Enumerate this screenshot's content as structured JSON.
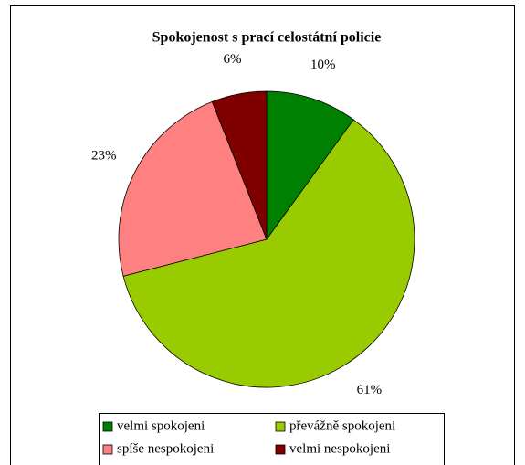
{
  "chart_data": {
    "type": "pie",
    "title": "Spokojenost s prací celostátní policie",
    "categories": [
      "velmi spokojeni",
      "převážně spokojeni",
      "spíše nespokojeni",
      "velmi nespokojeni"
    ],
    "values": [
      10,
      61,
      23,
      6
    ],
    "value_labels": [
      "10%",
      "61%",
      "23%",
      "6%"
    ],
    "colors": [
      "#008000",
      "#99cc00",
      "#ff8080",
      "#800000"
    ],
    "legend": "bottom"
  }
}
